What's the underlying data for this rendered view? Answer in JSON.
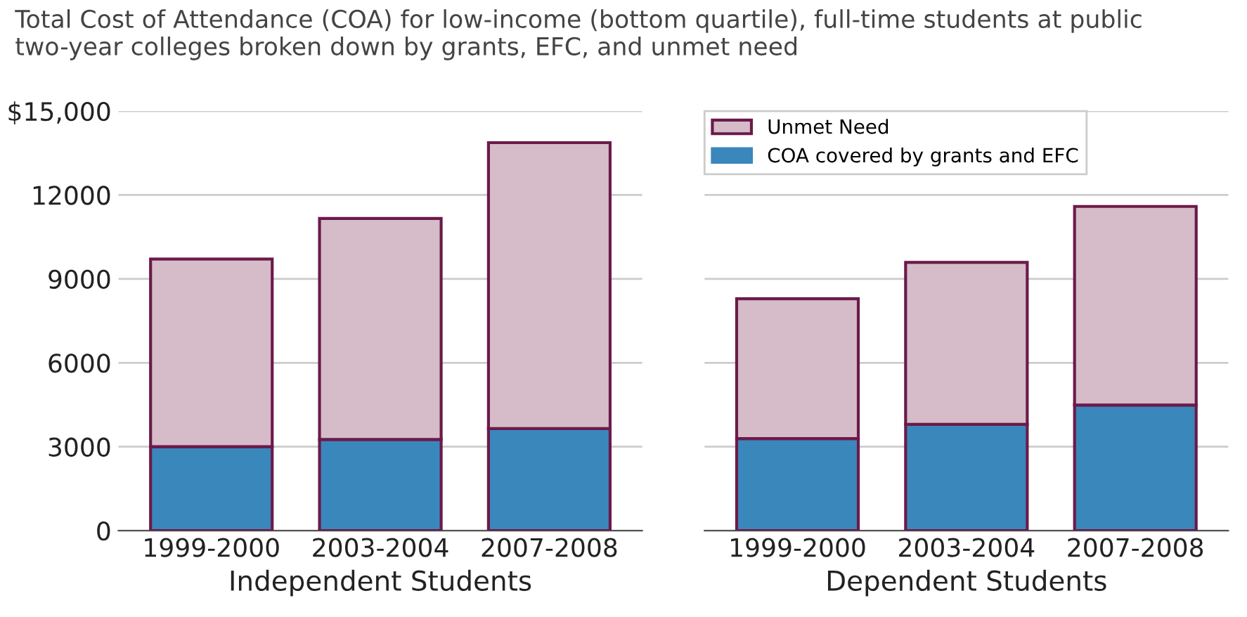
{
  "chart_data": [
    {
      "type": "bar",
      "title": "Total Cost of Attendance (COA) for low-income (bottom quartile), full-time students at public two-year colleges broken down by grants, EFC, and unmet need",
      "xlabel": "Independent Students",
      "categories": [
        "1999-2000",
        "2003-2004",
        "2007-2008"
      ],
      "stacked": true,
      "series": [
        {
          "color": "#3a87bb",
          "values": [
            3000,
            3260,
            3650
          ]
        },
        {
          "color": "#d5bcc8",
          "values": [
            6710,
            7900,
            10220
          ]
        }
      ],
      "ylim": [
        0,
        15000
      ],
      "yticks": [
        0,
        3000,
        6000,
        9000,
        12000,
        {
          "value": 15000,
          "label": "$15,000"
        }
      ],
      "grid": "y",
      "legend": false
    },
    {
      "type": "bar",
      "xlabel": "Dependent Students",
      "categories": [
        "1999-2000",
        "2003-2004",
        "2007-2008"
      ],
      "stacked": true,
      "series": [
        {
          "name": "COA covered by grants and EFC",
          "color": "#3a87bb",
          "values": [
            3290,
            3800,
            4490
          ]
        },
        {
          "name": "Unmet Need",
          "color": "#d5bcc8",
          "values": [
            5000,
            5790,
            7100
          ]
        }
      ],
      "ylim": [
        0,
        15000
      ],
      "yticks": [
        0,
        3000,
        6000,
        9000,
        12000,
        15000
      ],
      "grid": "y",
      "legend": "top left",
      "tick_labels": "x"
    }
  ]
}
